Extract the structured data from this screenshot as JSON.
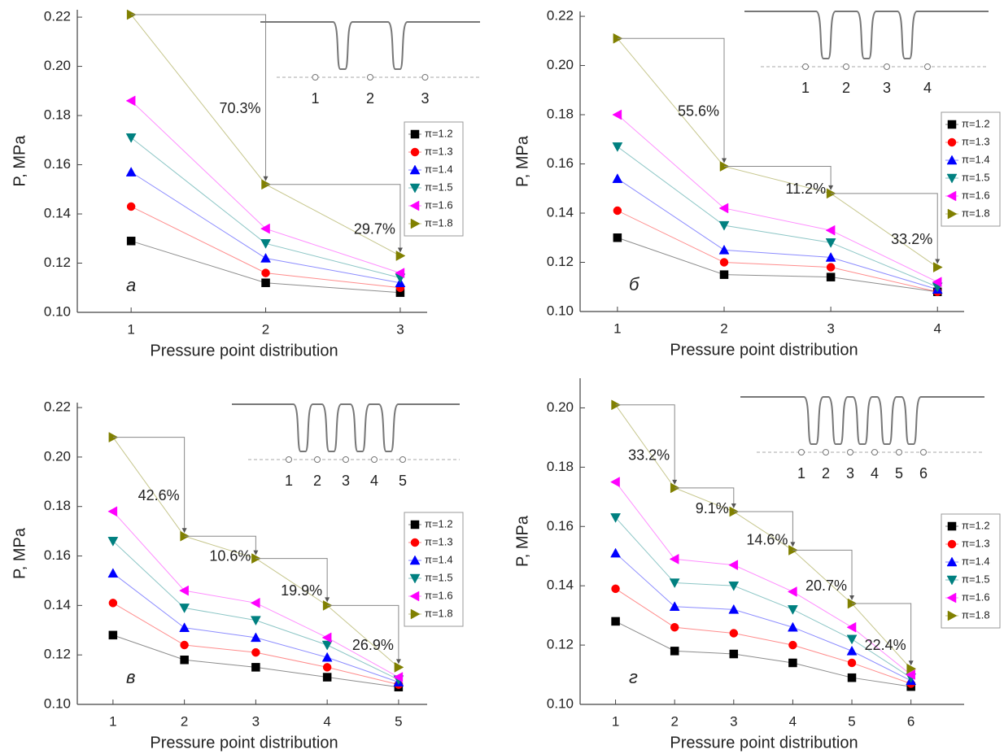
{
  "chart_data": [
    {
      "type": "line",
      "panel_label": "а",
      "x_label": "Pressure point distribution",
      "y_label": "P, MPa",
      "x": [
        1,
        2,
        3
      ],
      "xlim": [
        0.6,
        3.2
      ],
      "xticks": [
        1,
        2,
        3
      ],
      "ylim": [
        0.1,
        0.223
      ],
      "yticks": [
        {
          "value": 0.1,
          "label": "0.10"
        },
        0.12,
        0.14,
        0.16,
        0.18,
        {
          "value": 0.2,
          "label": "0.20"
        },
        0.22
      ],
      "legend": "right",
      "series": [
        {
          "name": "π=1.2",
          "color": "#000000",
          "marker": "square",
          "values": [
            0.129,
            0.112,
            0.108
          ]
        },
        {
          "name": "π=1.3",
          "color": "#ff0000",
          "marker": "circle",
          "values": [
            0.143,
            0.116,
            0.11
          ]
        },
        {
          "name": "π=1.4",
          "color": "#0000ff",
          "marker": "triangle-up",
          "values": [
            0.157,
            0.122,
            0.112
          ]
        },
        {
          "name": "π=1.5",
          "color": "#008080",
          "marker": "triangle-down",
          "values": [
            0.171,
            0.128,
            0.114
          ]
        },
        {
          "name": "π=1.6",
          "color": "#ff00ff",
          "marker": "triangle-left",
          "values": [
            0.186,
            0.134,
            0.116
          ]
        },
        {
          "name": "π=1.8",
          "color": "#808000",
          "marker": "triangle-right",
          "values": [
            0.221,
            0.152,
            0.123
          ]
        }
      ],
      "annotations": [
        "70.3%",
        "29.7%"
      ],
      "inset_labels": [
        "1",
        "2",
        "3"
      ]
    },
    {
      "type": "line",
      "panel_label": "б",
      "x_label": "Pressure point distribution",
      "y_label": "P, MPa",
      "x": [
        1,
        2,
        3,
        4
      ],
      "xlim": [
        0.65,
        4.25
      ],
      "xticks": [
        1,
        2,
        3,
        4
      ],
      "ylim": [
        0.1,
        0.222
      ],
      "yticks": [
        {
          "value": 0.1,
          "label": "0.10"
        },
        0.12,
        0.14,
        0.16,
        0.18,
        {
          "value": 0.2,
          "label": "0.20"
        },
        0.22
      ],
      "legend": "right",
      "series": [
        {
          "name": "π=1.2",
          "color": "#000000",
          "marker": "square",
          "values": [
            0.13,
            0.115,
            0.114,
            0.108
          ]
        },
        {
          "name": "π=1.3",
          "color": "#ff0000",
          "marker": "circle",
          "values": [
            0.141,
            0.12,
            0.118,
            0.108
          ]
        },
        {
          "name": "π=1.4",
          "color": "#0000ff",
          "marker": "triangle-up",
          "values": [
            0.154,
            0.125,
            0.122,
            0.109
          ]
        },
        {
          "name": "π=1.5",
          "color": "#008080",
          "marker": "triangle-down",
          "values": [
            0.167,
            0.135,
            0.128,
            0.11
          ]
        },
        {
          "name": "π=1.6",
          "color": "#ff00ff",
          "marker": "triangle-left",
          "values": [
            0.18,
            0.142,
            0.133,
            0.112
          ]
        },
        {
          "name": "π=1.8",
          "color": "#808000",
          "marker": "triangle-right",
          "values": [
            0.211,
            0.159,
            0.148,
            0.118
          ]
        }
      ],
      "annotations": [
        "55.6%",
        "11.2%",
        "33.2%"
      ],
      "inset_labels": [
        "1",
        "2",
        "3",
        "4"
      ]
    },
    {
      "type": "line",
      "panel_label": "в",
      "x_label": "Pressure point distribution",
      "y_label": "P, MPa",
      "x": [
        1,
        2,
        3,
        4,
        5
      ],
      "xlim": [
        0.5,
        5.4
      ],
      "xticks": [
        1,
        2,
        3,
        4,
        5
      ],
      "ylim": [
        0.1,
        0.222
      ],
      "yticks": [
        {
          "value": 0.1,
          "label": "0.10"
        },
        0.12,
        0.14,
        0.16,
        0.18,
        {
          "value": 0.2,
          "label": "0.20"
        },
        0.22
      ],
      "legend": "right",
      "series": [
        {
          "name": "π=1.2",
          "color": "#000000",
          "marker": "square",
          "values": [
            0.128,
            0.118,
            0.115,
            0.111,
            0.107
          ]
        },
        {
          "name": "π=1.3",
          "color": "#ff0000",
          "marker": "circle",
          "values": [
            0.141,
            0.124,
            0.121,
            0.115,
            0.108
          ]
        },
        {
          "name": "π=1.4",
          "color": "#0000ff",
          "marker": "triangle-up",
          "values": [
            0.153,
            0.131,
            0.127,
            0.119,
            0.109
          ]
        },
        {
          "name": "π=1.5",
          "color": "#008080",
          "marker": "triangle-down",
          "values": [
            0.166,
            0.139,
            0.134,
            0.124,
            0.11
          ]
        },
        {
          "name": "π=1.6",
          "color": "#ff00ff",
          "marker": "triangle-left",
          "values": [
            0.178,
            0.146,
            0.141,
            0.127,
            0.111
          ]
        },
        {
          "name": "π=1.8",
          "color": "#808000",
          "marker": "triangle-right",
          "values": [
            0.208,
            0.168,
            0.159,
            0.14,
            0.115
          ]
        }
      ],
      "annotations": [
        "42.6%",
        "10.6%",
        "19.9%",
        "26.9%"
      ],
      "inset_labels": [
        "1",
        "2",
        "3",
        "4",
        "5"
      ]
    },
    {
      "type": "line",
      "panel_label": "г",
      "x_label": "Pressure point distribution",
      "y_label": "P, MPa",
      "x": [
        1,
        2,
        3,
        4,
        5,
        6
      ],
      "xlim": [
        0.4,
        6.9
      ],
      "xticks": [
        1,
        2,
        3,
        4,
        5,
        6
      ],
      "ylim": [
        0.1,
        0.21
      ],
      "yticks": [
        {
          "value": 0.1,
          "label": "0.10"
        },
        0.12,
        0.14,
        0.16,
        0.18,
        {
          "value": 0.2,
          "label": "0.20"
        }
      ],
      "legend": "right",
      "series": [
        {
          "name": "π=1.2",
          "color": "#000000",
          "marker": "square",
          "values": [
            0.128,
            0.118,
            0.117,
            0.114,
            0.109,
            0.106
          ]
        },
        {
          "name": "π=1.3",
          "color": "#ff0000",
          "marker": "circle",
          "values": [
            0.139,
            0.126,
            0.124,
            0.12,
            0.114,
            0.107
          ]
        },
        {
          "name": "π=1.4",
          "color": "#0000ff",
          "marker": "triangle-up",
          "values": [
            0.151,
            0.133,
            0.132,
            0.126,
            0.118,
            0.108
          ]
        },
        {
          "name": "π=1.5",
          "color": "#008080",
          "marker": "triangle-down",
          "values": [
            0.163,
            0.141,
            0.14,
            0.132,
            0.122,
            0.109
          ]
        },
        {
          "name": "π=1.6",
          "color": "#ff00ff",
          "marker": "triangle-left",
          "values": [
            0.175,
            0.149,
            0.147,
            0.138,
            0.126,
            0.11
          ]
        },
        {
          "name": "π=1.8",
          "color": "#808000",
          "marker": "triangle-right",
          "values": [
            0.201,
            0.173,
            0.165,
            0.152,
            0.134,
            0.112
          ]
        }
      ],
      "annotations": [
        "33.2%",
        "9.1%",
        "14.6%",
        "20.7%",
        "22.4%"
      ],
      "inset_labels": [
        "1",
        "2",
        "3",
        "4",
        "5",
        "6"
      ]
    }
  ]
}
